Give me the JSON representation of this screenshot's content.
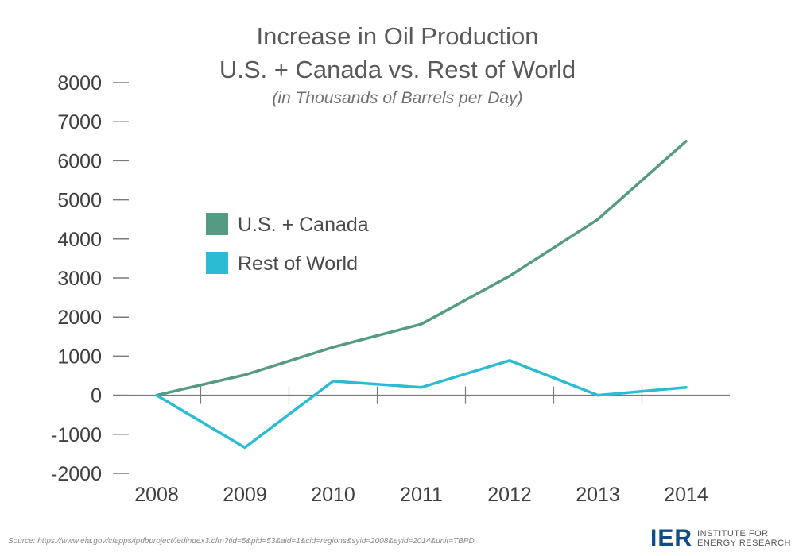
{
  "chart_data": {
    "type": "line",
    "title_line1": "Increase in Oil Production",
    "title_line2": "U.S. + Canada vs. Rest of World",
    "subtitle": "(in Thousands of Barrels per Day)",
    "xlabel": "",
    "ylabel": "",
    "categories": [
      "2008",
      "2009",
      "2010",
      "2011",
      "2012",
      "2013",
      "2014"
    ],
    "ylim": [
      -2000,
      8000
    ],
    "yticks": [
      8000,
      7000,
      6000,
      5000,
      4000,
      3000,
      2000,
      1000,
      0,
      -1000,
      -2000
    ],
    "grid": false,
    "legend_position": "left",
    "series": [
      {
        "name": "U.S. + Canada",
        "color": "#559a82",
        "values": [
          0,
          520,
          1230,
          1820,
          3050,
          4500,
          6500
        ]
      },
      {
        "name": "Rest of World",
        "color": "#2bbcd4",
        "values": [
          0,
          -1340,
          360,
          200,
          890,
          0,
          200
        ]
      }
    ]
  },
  "source": "Source: https://www.eia.gov/cfapps/ipdbproject/iedindex3.cfm?tid=5&pid=53&aid=1&cid=regions&syid=2008&eyid=2014&unit=TBPD",
  "logo": {
    "mark": "IER",
    "line1": "INSTITUTE FOR",
    "line2": "ENERGY RESEARCH",
    "color": "#0f4d8a"
  }
}
